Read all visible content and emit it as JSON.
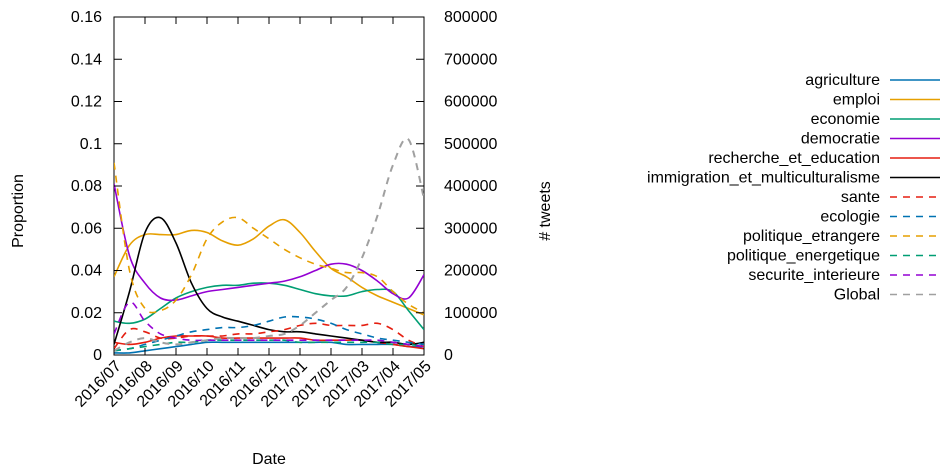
{
  "chart_data": {
    "type": "line",
    "xlabel": "Date",
    "ylabel": "Proportion",
    "y2label": "# tweets",
    "categories": [
      "2016/07",
      "2016/08",
      "2016/09",
      "2016/10",
      "2016/11",
      "2016/12",
      "2017/01",
      "2017/02",
      "2017/03",
      "2017/04",
      "2017/05"
    ],
    "xlim": [
      "2016/07",
      "2017/05"
    ],
    "ylim": [
      0,
      0.16
    ],
    "yticks": [
      "0",
      "0.02",
      "0.04",
      "0.06",
      "0.08",
      "0.1",
      "0.12",
      "0.14",
      "0.16"
    ],
    "y2lim": [
      0,
      800000
    ],
    "y2ticks": [
      "0",
      "100000",
      "200000",
      "300000",
      "400000",
      "500000",
      "600000",
      "700000",
      "800000"
    ],
    "grid": false,
    "legend_position": "right",
    "x": [
      0,
      0.5,
      1,
      1.5,
      2,
      2.5,
      3,
      3.5,
      4,
      4.5,
      5,
      5.5,
      6,
      6.5,
      7,
      7.5,
      8,
      8.5,
      9,
      9.5,
      10
    ],
    "series": [
      {
        "name": "agriculture",
        "color": "#0072b2",
        "dash": false,
        "axis": "y",
        "values": [
          0.001,
          0.001,
          0.002,
          0.003,
          0.004,
          0.005,
          0.006,
          0.006,
          0.006,
          0.006,
          0.006,
          0.006,
          0.006,
          0.006,
          0.006,
          0.005,
          0.005,
          0.005,
          0.005,
          0.004,
          0.004
        ]
      },
      {
        "name": "emploi",
        "color": "#e69f00",
        "dash": false,
        "axis": "y",
        "values": [
          0.037,
          0.052,
          0.057,
          0.057,
          0.057,
          0.059,
          0.058,
          0.054,
          0.052,
          0.055,
          0.061,
          0.064,
          0.058,
          0.049,
          0.041,
          0.037,
          0.032,
          0.028,
          0.025,
          0.022,
          0.019
        ]
      },
      {
        "name": "economie",
        "color": "#009e73",
        "dash": false,
        "axis": "y",
        "values": [
          0.016,
          0.015,
          0.017,
          0.022,
          0.027,
          0.03,
          0.032,
          0.033,
          0.033,
          0.034,
          0.034,
          0.033,
          0.031,
          0.029,
          0.028,
          0.028,
          0.03,
          0.031,
          0.03,
          0.021,
          0.012
        ]
      },
      {
        "name": "democratie",
        "color": "#9400d3",
        "dash": false,
        "axis": "y",
        "values": [
          0.081,
          0.047,
          0.034,
          0.027,
          0.026,
          0.028,
          0.03,
          0.031,
          0.032,
          0.033,
          0.034,
          0.035,
          0.037,
          0.04,
          0.043,
          0.043,
          0.04,
          0.035,
          0.029,
          0.027,
          0.038
        ]
      },
      {
        "name": "recherche_et_education",
        "color": "#e51e10",
        "dash": false,
        "axis": "y",
        "values": [
          0.006,
          0.005,
          0.006,
          0.008,
          0.009,
          0.009,
          0.009,
          0.008,
          0.008,
          0.008,
          0.008,
          0.008,
          0.008,
          0.007,
          0.007,
          0.007,
          0.007,
          0.006,
          0.005,
          0.004,
          0.003
        ]
      },
      {
        "name": "immigration_et_multiculturalisme",
        "color": "#000000",
        "dash": false,
        "axis": "y",
        "values": [
          0.005,
          0.03,
          0.058,
          0.065,
          0.053,
          0.034,
          0.022,
          0.018,
          0.016,
          0.014,
          0.012,
          0.011,
          0.011,
          0.01,
          0.009,
          0.008,
          0.007,
          0.006,
          0.006,
          0.005,
          0.006
        ]
      },
      {
        "name": "sante",
        "color": "#e51e10",
        "dash": true,
        "axis": "y",
        "values": [
          0.003,
          0.012,
          0.011,
          0.008,
          0.008,
          0.009,
          0.009,
          0.009,
          0.01,
          0.01,
          0.011,
          0.012,
          0.014,
          0.015,
          0.014,
          0.014,
          0.014,
          0.015,
          0.012,
          0.007,
          0.004
        ]
      },
      {
        "name": "ecologie",
        "color": "#0072b2",
        "dash": true,
        "axis": "y",
        "values": [
          0.002,
          0.003,
          0.005,
          0.007,
          0.009,
          0.011,
          0.012,
          0.013,
          0.013,
          0.014,
          0.016,
          0.018,
          0.018,
          0.017,
          0.015,
          0.012,
          0.01,
          0.008,
          0.007,
          0.006,
          0.005
        ]
      },
      {
        "name": "politique_etrangere",
        "color": "#e69f00",
        "dash": true,
        "axis": "y",
        "values": [
          0.091,
          0.04,
          0.022,
          0.021,
          0.026,
          0.038,
          0.055,
          0.063,
          0.065,
          0.06,
          0.055,
          0.05,
          0.046,
          0.043,
          0.041,
          0.039,
          0.039,
          0.037,
          0.03,
          0.024,
          0.02
        ]
      },
      {
        "name": "politique_energetique",
        "color": "#009e73",
        "dash": true,
        "axis": "y",
        "values": [
          0.002,
          0.003,
          0.004,
          0.005,
          0.006,
          0.006,
          0.007,
          0.007,
          0.007,
          0.007,
          0.007,
          0.007,
          0.006,
          0.006,
          0.006,
          0.006,
          0.006,
          0.006,
          0.005,
          0.005,
          0.004
        ]
      },
      {
        "name": "securite_interieure",
        "color": "#9400d3",
        "dash": true,
        "axis": "y",
        "values": [
          0.01,
          0.025,
          0.016,
          0.01,
          0.008,
          0.007,
          0.007,
          0.007,
          0.007,
          0.007,
          0.007,
          0.007,
          0.007,
          0.007,
          0.007,
          0.007,
          0.007,
          0.007,
          0.006,
          0.005,
          0.004
        ]
      },
      {
        "name": "Global",
        "color": "#a0a0a0",
        "dash": true,
        "axis": "y2",
        "values": [
          10000,
          30000,
          40000,
          30000,
          25000,
          30000,
          35000,
          40000,
          40000,
          40000,
          45000,
          50000,
          70000,
          100000,
          130000,
          160000,
          230000,
          330000,
          450000,
          510000,
          370000
        ]
      }
    ]
  }
}
